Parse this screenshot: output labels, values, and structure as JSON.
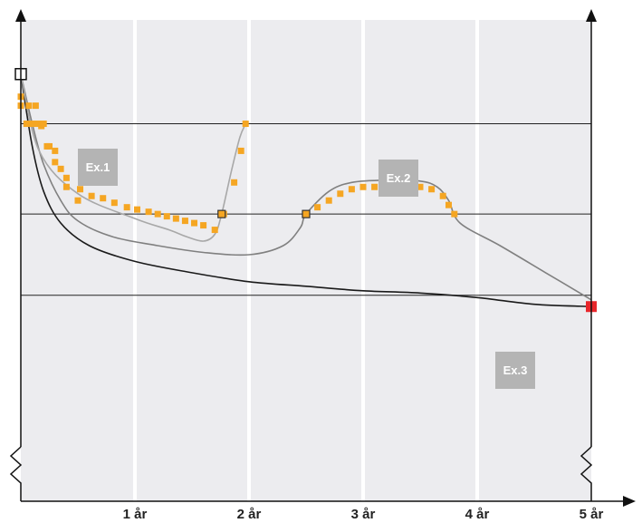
{
  "colors": {
    "panel": "#ececef",
    "grid": "#ffffff",
    "axis": "#111111",
    "hline": "#222222",
    "curve_dark": "#1a1a1a",
    "curve_mid": "#808080",
    "curve_light": "#a8a8a8",
    "marker": "#f5a623",
    "marker_edge": "#333333",
    "endpoint": "#e8262b",
    "label_box": "#b4b4b4"
  },
  "chart_data": {
    "type": "line",
    "title": "",
    "xlabel": "",
    "ylabel": "",
    "x_ticks": [
      "1 år",
      "2 år",
      "3 år",
      "4 år",
      "5 år"
    ],
    "xlim": [
      0,
      5.05
    ],
    "ylim": [
      0,
      100
    ],
    "grid": true,
    "y_axis": "unlabeled",
    "reference_levels": [
      77,
      57,
      39
    ],
    "annotations": [
      "Ex.1",
      "Ex.2",
      "Ex.3"
    ],
    "series": [
      {
        "label": "Ex.1",
        "color": "#a8a8a8",
        "curve": [
          [
            0,
            88
          ],
          [
            0.16,
            71
          ],
          [
            0.5,
            61.5
          ],
          [
            1.0,
            56
          ],
          [
            1.3,
            53.5
          ],
          [
            1.45,
            52
          ],
          [
            1.6,
            51
          ],
          [
            1.7,
            52.5
          ],
          [
            1.76,
            57
          ],
          [
            1.85,
            67
          ],
          [
            1.92,
            74
          ],
          [
            1.97,
            77
          ]
        ],
        "markers": [
          [
            0,
            81
          ],
          [
            0.07,
            81
          ],
          [
            0.13,
            81
          ],
          [
            0.18,
            76.5
          ],
          [
            0.23,
            72
          ],
          [
            0.3,
            68.5
          ],
          [
            0.4,
            65
          ],
          [
            0.52,
            62.5
          ],
          [
            0.62,
            61
          ],
          [
            0.72,
            60.5
          ],
          [
            0.82,
            59.5
          ],
          [
            0.93,
            58.5
          ],
          [
            1.02,
            58
          ],
          [
            1.12,
            57.5
          ],
          [
            1.2,
            57
          ],
          [
            1.28,
            56.5
          ],
          [
            1.36,
            56
          ],
          [
            1.44,
            55.5
          ],
          [
            1.52,
            55
          ],
          [
            1.6,
            54.5
          ],
          [
            1.7,
            53.5
          ],
          [
            1.78,
            57
          ],
          [
            1.87,
            64
          ],
          [
            1.93,
            71
          ],
          [
            1.97,
            77
          ]
        ],
        "key_markers": [
          [
            1.76,
            57
          ]
        ]
      },
      {
        "label": "Ex.2",
        "color": "#808080",
        "curve": [
          [
            0,
            88
          ],
          [
            0.1,
            77
          ],
          [
            0.2,
            68
          ],
          [
            0.35,
            60
          ],
          [
            0.5,
            55.5
          ],
          [
            0.8,
            52
          ],
          [
            1.2,
            50
          ],
          [
            1.6,
            48.5
          ],
          [
            2.0,
            48
          ],
          [
            2.3,
            50
          ],
          [
            2.45,
            54
          ],
          [
            2.5,
            57
          ],
          [
            2.7,
            62
          ],
          [
            2.9,
            64
          ],
          [
            3.2,
            64.5
          ],
          [
            3.5,
            64.3
          ],
          [
            3.65,
            63
          ],
          [
            3.75,
            60
          ],
          [
            3.85,
            55
          ],
          [
            4.2,
            50
          ],
          [
            4.6,
            44
          ],
          [
            5.0,
            38
          ]
        ],
        "markers": [
          [
            0,
            83
          ],
          [
            0.05,
            77
          ],
          [
            0.1,
            77
          ],
          [
            0.15,
            77
          ],
          [
            0.2,
            77
          ],
          [
            0.25,
            72
          ],
          [
            0.3,
            71
          ],
          [
            0.35,
            67
          ],
          [
            0.4,
            63
          ],
          [
            0.5,
            60
          ],
          [
            2.5,
            57
          ],
          [
            2.6,
            58.5
          ],
          [
            2.7,
            60
          ],
          [
            2.8,
            61.5
          ],
          [
            2.9,
            62.5
          ],
          [
            3.0,
            63
          ],
          [
            3.1,
            63
          ],
          [
            3.2,
            63
          ],
          [
            3.3,
            63
          ],
          [
            3.4,
            63
          ],
          [
            3.5,
            63
          ],
          [
            3.6,
            62.5
          ],
          [
            3.7,
            61
          ],
          [
            3.75,
            59
          ],
          [
            3.8,
            57
          ]
        ],
        "key_markers": [
          [
            2.5,
            57
          ]
        ]
      },
      {
        "label": "Ex.3",
        "color": "#1a1a1a",
        "curve": [
          [
            0,
            88
          ],
          [
            0.1,
            72
          ],
          [
            0.2,
            62
          ],
          [
            0.35,
            55
          ],
          [
            0.6,
            50
          ],
          [
            1.0,
            46.5
          ],
          [
            1.5,
            44
          ],
          [
            2.0,
            42
          ],
          [
            2.5,
            41
          ],
          [
            3.0,
            40
          ],
          [
            3.5,
            39.5
          ],
          [
            4.0,
            38.5
          ],
          [
            4.5,
            37
          ],
          [
            5.0,
            36.5
          ]
        ],
        "end_marker": [
          5.0,
          36.5
        ]
      }
    ]
  }
}
